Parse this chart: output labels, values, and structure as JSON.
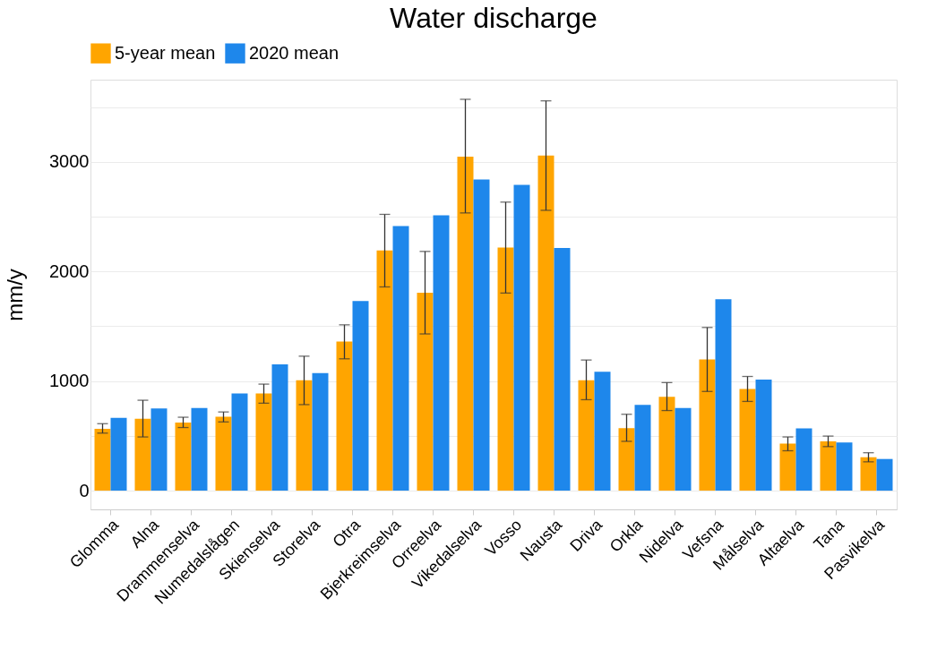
{
  "chart_data": {
    "type": "bar",
    "title": "Water discharge",
    "ylabel": "mm/y",
    "categories": [
      "Glomma",
      "Alna",
      "Drammenselva",
      "Numedalslågen",
      "Skienselva",
      "Storelva",
      "Otra",
      "Bjerkreimselva",
      "Orreelva",
      "Vikedalselva",
      "Vosso",
      "Nausta",
      "Driva",
      "Orkla",
      "Nidelva",
      "Vefsna",
      "Målselva",
      "Altaelva",
      "Tana",
      "Pasvikelva"
    ],
    "series": [
      {
        "name": "5-year mean",
        "color": "#ffa500",
        "values": [
          565,
          656,
          621,
          675,
          887,
          1007,
          1361,
          2191,
          1805,
          3048,
          2218,
          3057,
          1007,
          571,
          857,
          1197,
          927,
          429,
          450,
          305
        ],
        "errors": [
          [
            525,
            611
          ],
          [
            490,
            825
          ],
          [
            576,
            670
          ],
          [
            627,
            718
          ],
          [
            798,
            972
          ],
          [
            785,
            1227
          ],
          [
            1203,
            1513
          ],
          [
            1859,
            2521
          ],
          [
            1430,
            2183
          ],
          [
            2534,
            3571
          ],
          [
            1803,
            2633
          ],
          [
            2558,
            3557
          ],
          [
            830,
            1192
          ],
          [
            450,
            697
          ],
          [
            731,
            986
          ],
          [
            905,
            1489
          ],
          [
            814,
            1042
          ],
          [
            364,
            490
          ],
          [
            402,
            498
          ],
          [
            263,
            346
          ]
        ]
      },
      {
        "name": "2020 mean",
        "color": "#1e87eb",
        "values": [
          664,
          750,
          755,
          887,
          1152,
          1072,
          1731,
          2414,
          2513,
          2840,
          2791,
          2215,
          1085,
          782,
          755,
          1747,
          1013,
          568,
          439,
          289
        ]
      }
    ],
    "ylim": [
      -171,
      3750
    ],
    "yticks": [
      0,
      {
        "value": 500,
        "label": null
      },
      1000,
      {
        "value": 1500,
        "label": null
      },
      2000,
      {
        "value": 2500,
        "label": null
      },
      3000,
      {
        "value": 3500,
        "label": null
      }
    ],
    "grid": "y",
    "legend": "top"
  }
}
